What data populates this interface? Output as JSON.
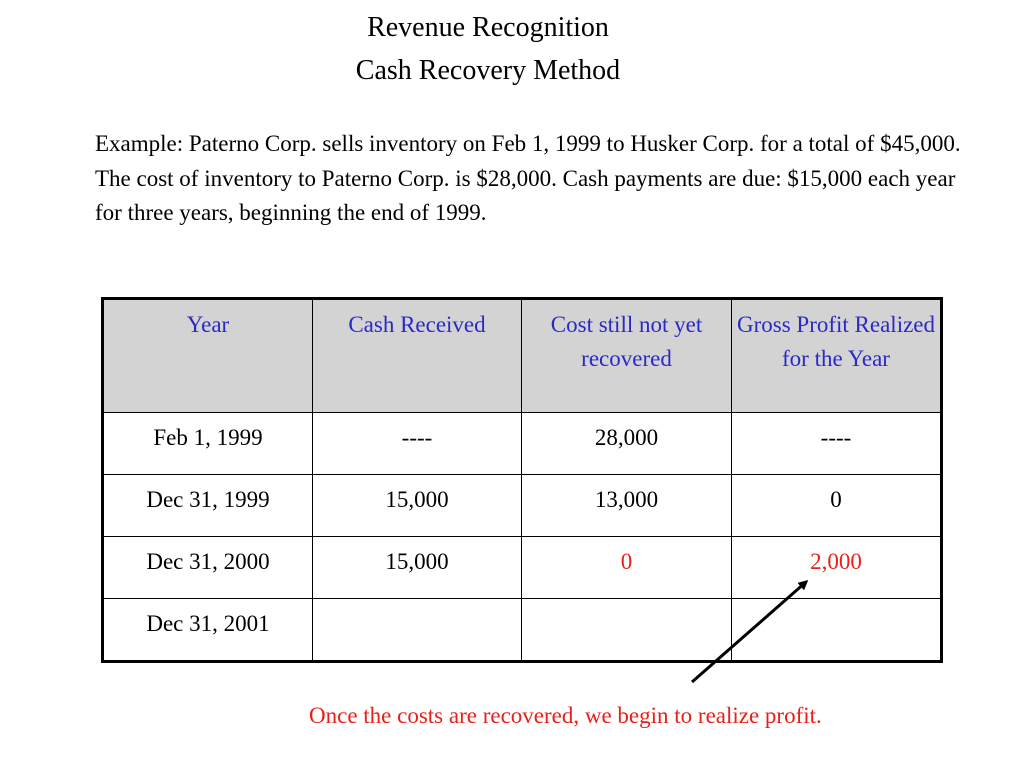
{
  "title": {
    "line1": "Revenue Recognition",
    "line2": "Cash Recovery Method"
  },
  "example_text": "Example: Paterno Corp. sells inventory on Feb 1, 1999 to Husker Corp. for a total of $45,000.  The cost of inventory to Paterno Corp. is $28,000.  Cash payments are due: $15,000 each year for three years, beginning the end of 1999.",
  "table": {
    "headers": [
      "Year",
      "Cash Received",
      "Cost still not yet recovered",
      "Gross Profit Realized  for the Year"
    ],
    "rows": [
      [
        "Feb 1, 1999",
        "----",
        "28,000",
        "----"
      ],
      [
        "Dec 31, 1999",
        "15,000",
        "13,000",
        "0"
      ],
      [
        "Dec 31, 2000",
        "15,000",
        "0",
        "2,000"
      ],
      [
        "Dec 31, 2001",
        "",
        "",
        ""
      ]
    ]
  },
  "note": "Once the costs are recovered, we begin to realize profit.",
  "colors": {
    "header_text": "#2929c8",
    "header_bg": "#d3d3d3",
    "highlight": "#e8201a"
  }
}
